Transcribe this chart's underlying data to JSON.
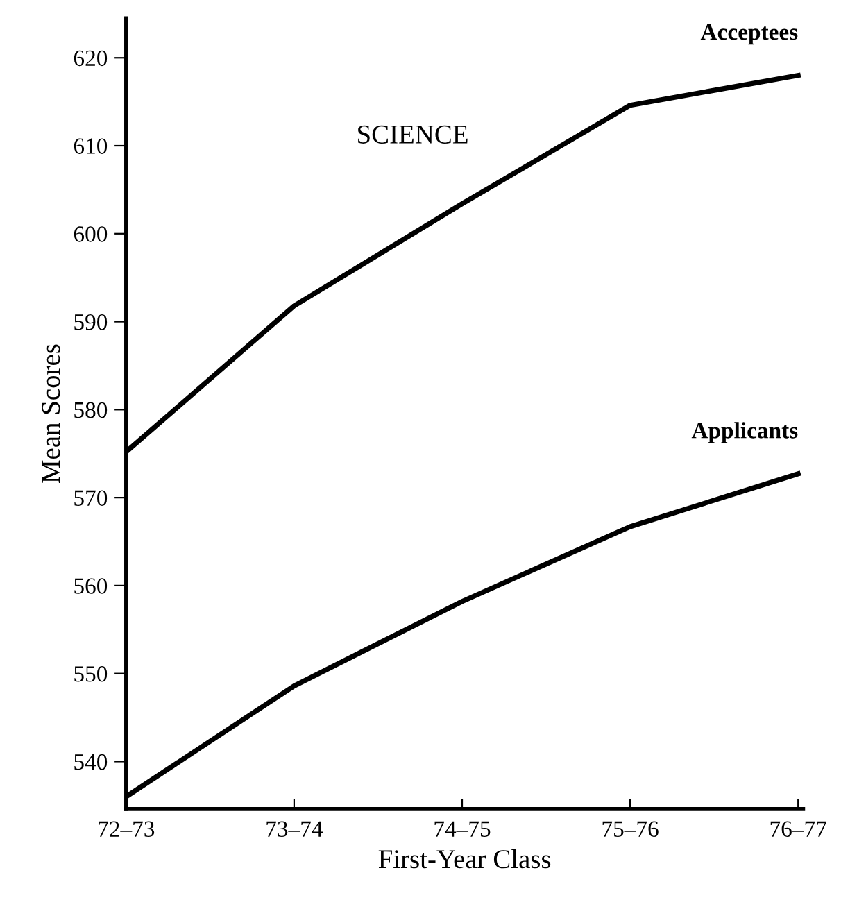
{
  "chart_data": {
    "type": "line",
    "title": "SCIENCE",
    "xlabel": "First-Year Class",
    "ylabel": "Mean Scores",
    "categories": [
      "72–73",
      "73–74",
      "74–75",
      "75–76",
      "76–77"
    ],
    "series": [
      {
        "name": "Acceptees",
        "color": "#000000",
        "values": [
          575.2,
          591.8,
          603.4,
          614.6,
          618
        ]
      },
      {
        "name": "Applicants",
        "color": "#000000",
        "values": [
          536,
          548.6,
          558.2,
          566.7,
          572.7
        ]
      }
    ],
    "ylim": [
      534.6,
      624.5
    ],
    "yticks": [
      540,
      550,
      560,
      570,
      580,
      590,
      600,
      610,
      620
    ],
    "grid": false,
    "legend": false,
    "marker": "none",
    "line_style": "solid"
  }
}
